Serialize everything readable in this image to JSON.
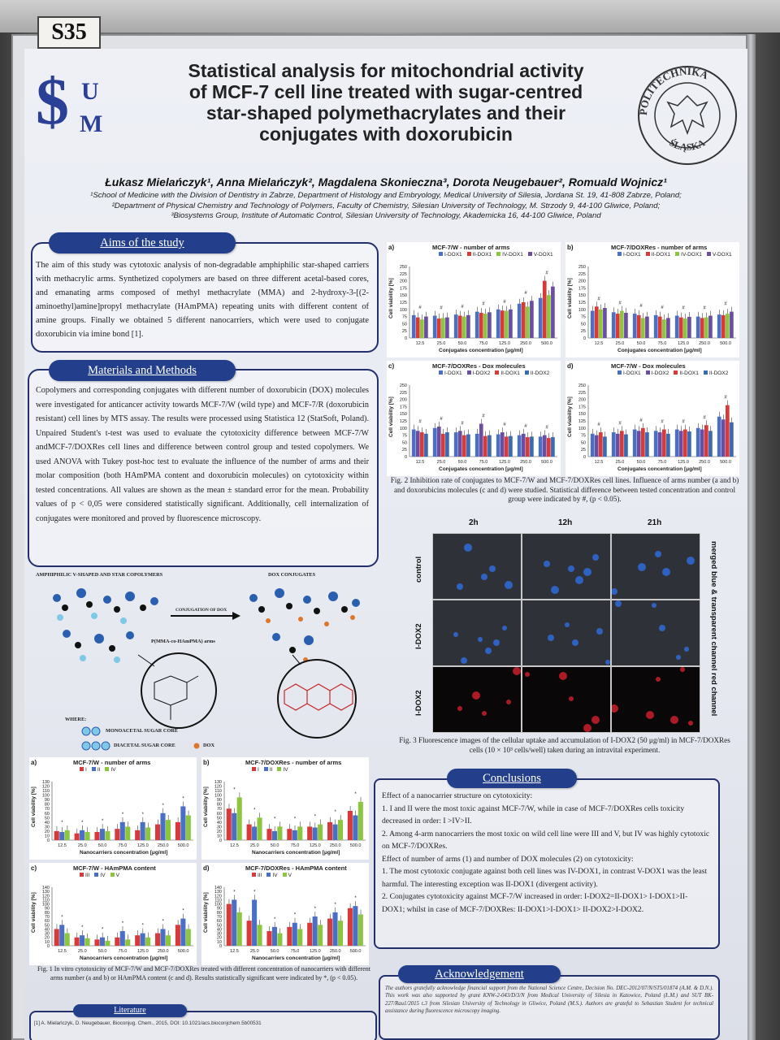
{
  "board": {
    "tag": "S35"
  },
  "logo": {
    "left": "$",
    "u": "U",
    "m": "M",
    "seal_text": "POLITECHNIKA ŚLĄSKA"
  },
  "title": {
    "lines": [
      "Statistical analysis for mitochondrial activity",
      "of MCF-7 cell line treated with sugar-centred",
      "star-shaped polymethacrylates and their",
      "conjugates with doxorubicin"
    ]
  },
  "authors": "Łukasz Mielańczyk¹, Anna Mielańczyk², Magdalena Skonieczna³, Dorota Neugebauer², Romuald Wojnicz¹",
  "affiliations": [
    "¹School of Medicine with the Division of Dentistry in Zabrze, Department of Histology and Embryology, Medical University of Silesia, Jordana St. 19, 41-808 Zabrze, Poland;",
    "²Department of Physical Chemistry and Technology of Polymers, Faculty of Chemistry, Silesian University of Technology, M. Strzody 9, 44-100 Gliwice, Poland;",
    "³Biosystems Group, Institute of Automatic Control, Silesian University of Technology, Akademicka 16, 44-100 Gliwice, Poland"
  ],
  "aims": {
    "heading": "Aims of the study",
    "text": "The aim of this study was cytotoxic analysis of non-degradable amphiphilic star-shaped carriers with methacrylic arms. Synthetized copolymers are based on three different acetal-based cores, and emanating arms composed of methyl methacrylate (MMA) and 2-hydroxy-3-[(2-aminoethyl)amine]propyl methacrylate (HAmPMA) repeating units with different content of amine groups. Finally we obtained 5 different nanocarriers, which were used to conjugate doxorubicin via imine bond [1]."
  },
  "methods": {
    "heading": "Materials and Methods",
    "text": "Copolymers and corresponding conjugates with different number of doxorubicin (DOX) molecules were investigated for anticancer activity towards MCF-7/W (wild type) and MCF-7/R (doxorubicin resistant) cell lines by MTS assay. The results were processed using Statistica 12 (StatSoft, Poland). Unpaired Student's t-test was used to evaluate the cytotoxicity difference between MCF-7/W andMCF-7/DOXRes cell lines and difference between control group and tested copolymers. We used ANOVA with Tukey post-hoc test to evaluate the influence of the number of arms and their molar composition (both HAmPMA content and doxorubicin molecules) on cytotoxicity within tested concentrations. All values are shown as the mean ± standard error for the mean. Probability values of p < 0,05 were considered statistically significant. Additionally, cell internalization of conjugates were monitored and proved by fluorescence microscopy."
  },
  "scheme": {
    "left_title": "AMPHIPHILIC V-SHAPED AND STAR COPOLYMERS",
    "right_title": "DOX CONJUGATES",
    "arrow_label": "CONJUGATION OF DOX",
    "arms_label": "P(MMA-co-HAmPMA) arms",
    "where": "WHERE:",
    "mono": "MONOACETAL SUGAR CORE",
    "di": "DIACETAL SUGAR CORE",
    "dox": "DOX"
  },
  "fig2": {
    "caption": "Fig. 2 Inhibition rate of conjugates to MCF-7/W and MCF-7/DOXRes cell lines. Influence of arms number (a and b) and doxorubicins molecules (c and d) were studied. Statistical difference between tested concentration and control group were indicated by #, (p < 0.05).",
    "y_label": "Cell viability [%]",
    "x_label": "Conjugates concentration [μg/ml]"
  },
  "fig1": {
    "caption": "Fig. 1 In vitro cytotoxicity of MCF-7/W and MCF-7/DOXRes treated with different concentration of nanocarriers with different arms number (a and b) or HAmPMA content (c and d). Results statistically significant were indicated by *, (p < 0.05).",
    "y_label": "Cell viability [%]",
    "x_label": "Nanocarriers concentration [μg/ml]"
  },
  "fig3": {
    "caption": "Fig. 3 Fluorescence images of the cellular uptake and accumulation of I-DOX2 (50 μg/ml) in MCF-7/DOXRes cells (10 × 10³ cells/well) taken during an intravital experiment.",
    "columns": [
      "2h",
      "12h",
      "21h"
    ],
    "rows": [
      "control",
      "I-DOX2",
      "I-DOX2"
    ],
    "side_top": "merged blue & transparent channel",
    "side_bottom": "red channel"
  },
  "conclusions": {
    "heading": "Conclusions",
    "intro1": "Effect of a nanocarrier structure on cytotoxicity:",
    "item1": "1.  I and II were the most toxic against MCF-7/W, while in case of MCF-7/DOXRes cells toxicity decreased in order: I >IV>II.",
    "item2": "2.  Among 4-arm nanocarriers the most toxic on wild cell line were III and V, but IV was highly cytotoxic on MCF-7/DOXRes.",
    "intro2": "Effect of number of arms (1) and number of DOX molecules (2) on cytotoxicity:",
    "item3": "1.  The most cytotoxic conjugate against both cell lines was IV-DOX1, in contrast V-DOX1 was the least harmful. The interesting exception was II-DOX1 (divergent activity).",
    "item4": "2.  Conjugates cytotoxicity against MCF-7/W increased in order: I-DOX2=II-DOX1> I-DOX1>II-DOX1; whilst in case of MCF-7/DOXRes: II-DOX1>I-DOX1> II-DOX2>I-DOX2."
  },
  "acknowledgement": {
    "heading": "Acknowledgement",
    "text": "The authors gratefully acknowledge financial support from the National Science Centre, Decision No. DEC-2012/07/N/ST5/01874 (A.M. & D.N.). This work was also supported by grant KNW-2-043/D/3/N from Medical University of Silesia in Katowice, Poland (Ł.M.) and SUT BK-227/Rau1/2015 t.3 from Silesian University of Technology in Gliwice, Poland (M.S.). Authors are grateful to Sebastian Student for technical assistance during fluorescence microscopy imaging."
  },
  "literature": {
    "heading": "Literature",
    "text": "[1] A. Mielańczyk, D. Neugebauer, Bioconjug. Chem., 2015, DOI: 10.1021/acs.bioconjchem.5b00531"
  },
  "chart_data": [
    {
      "id": "fig2a",
      "type": "bar",
      "panel": "a)",
      "title": "MCF-7/W - number of arms",
      "legend": [
        "I-DOX1",
        "II-DOX1",
        "IV-DOX1",
        "V-DOX1"
      ],
      "colors": [
        "#4a6fc4",
        "#d83a3a",
        "#8cc63f",
        "#6a4ea0"
      ],
      "categories": [
        "12.5",
        "25.0",
        "50.0",
        "75.0",
        "125.0",
        "250.0",
        "500.0"
      ],
      "ylim": [
        0,
        250
      ],
      "yticks": [
        0,
        25,
        50,
        75,
        100,
        125,
        150,
        175,
        200,
        225,
        250
      ],
      "series": [
        {
          "name": "I-DOX1",
          "values": [
            80,
            78,
            82,
            92,
            100,
            120,
            140
          ]
        },
        {
          "name": "II-DOX1",
          "values": [
            72,
            68,
            78,
            88,
            96,
            125,
            200
          ]
        },
        {
          "name": "IV-DOX1",
          "values": [
            65,
            70,
            75,
            85,
            95,
            110,
            150
          ]
        },
        {
          "name": "V-DOX1",
          "values": [
            75,
            72,
            80,
            90,
            100,
            130,
            180
          ]
        }
      ]
    },
    {
      "id": "fig2b",
      "type": "bar",
      "panel": "b)",
      "title": "MCF-7/DOXRes - number of arms",
      "legend": [
        "I-DOX1",
        "II-DOX1",
        "IV-DOX1",
        "V-DOX1"
      ],
      "colors": [
        "#4a6fc4",
        "#d83a3a",
        "#8cc63f",
        "#6a4ea0"
      ],
      "categories": [
        "12.5",
        "25.0",
        "50.0",
        "75.0",
        "125.0",
        "250.0",
        "500.0"
      ],
      "ylim": [
        0,
        250
      ],
      "yticks": [
        0,
        25,
        50,
        75,
        100,
        125,
        150,
        175,
        200,
        225,
        250
      ],
      "series": [
        {
          "name": "I-DOX1",
          "values": [
            95,
            90,
            85,
            80,
            78,
            75,
            82
          ]
        },
        {
          "name": "II-DOX1",
          "values": [
            110,
            85,
            80,
            75,
            72,
            70,
            80
          ]
        },
        {
          "name": "IV-DOX1",
          "values": [
            100,
            95,
            70,
            65,
            68,
            72,
            85
          ]
        },
        {
          "name": "V-DOX1",
          "values": [
            105,
            88,
            75,
            70,
            74,
            78,
            92
          ]
        }
      ]
    },
    {
      "id": "fig2c",
      "type": "bar",
      "panel": "c)",
      "title": "MCF-7/DOXRes - Dox molecules",
      "legend": [
        "I-DOX1",
        "I-DOX2",
        "II-DOX1",
        "II-DOX2"
      ],
      "colors": [
        "#4a6fc4",
        "#6a4ea0",
        "#d83a3a",
        "#3a6ab0"
      ],
      "categories": [
        "12.5",
        "25.0",
        "50.0",
        "75.0",
        "125.0",
        "250.0",
        "500.0"
      ],
      "ylim": [
        0,
        250
      ],
      "yticks": [
        0,
        25,
        50,
        75,
        100,
        125,
        150,
        175,
        200,
        225,
        250
      ],
      "series": [
        {
          "name": "I-DOX1",
          "values": [
            95,
            100,
            85,
            80,
            78,
            75,
            70
          ]
        },
        {
          "name": "I-DOX2",
          "values": [
            90,
            105,
            90,
            115,
            85,
            80,
            75
          ]
        },
        {
          "name": "II-DOX1",
          "values": [
            85,
            80,
            75,
            72,
            70,
            68,
            65
          ]
        },
        {
          "name": "II-DOX2",
          "values": [
            80,
            85,
            78,
            75,
            72,
            70,
            68
          ]
        }
      ]
    },
    {
      "id": "fig2d",
      "type": "bar",
      "panel": "d)",
      "title": "MCF-7/W - Dox molecules",
      "legend": [
        "I-DOX1",
        "I-DOX2",
        "II-DOX1",
        "II-DOX2"
      ],
      "colors": [
        "#4a6fc4",
        "#6a4ea0",
        "#d83a3a",
        "#3a6ab0"
      ],
      "categories": [
        "12.5",
        "25.0",
        "50.0",
        "75.0",
        "125.0",
        "250.0",
        "500.0"
      ],
      "ylim": [
        0,
        250
      ],
      "yticks": [
        0,
        25,
        50,
        75,
        100,
        125,
        150,
        175,
        200,
        225,
        250
      ],
      "series": [
        {
          "name": "I-DOX1",
          "values": [
            80,
            85,
            95,
            90,
            95,
            100,
            140
          ]
        },
        {
          "name": "I-DOX2",
          "values": [
            75,
            80,
            90,
            85,
            90,
            95,
            130
          ]
        },
        {
          "name": "II-DOX1",
          "values": [
            85,
            90,
            100,
            95,
            95,
            110,
            180
          ]
        },
        {
          "name": "II-DOX2",
          "values": [
            70,
            78,
            85,
            80,
            88,
            90,
            120
          ]
        }
      ]
    },
    {
      "id": "fig1a",
      "type": "bar",
      "panel": "a)",
      "title": "MCF-7/W - number of arms",
      "legend": [
        "I",
        "II",
        "IV"
      ],
      "colors": [
        "#d83a3a",
        "#4a6fc4",
        "#8cc63f"
      ],
      "categories": [
        "12.5",
        "25.0",
        "50.0",
        "75.0",
        "125.0",
        "250.0",
        "500.0"
      ],
      "ylim": [
        0,
        130
      ],
      "yticks": [
        0,
        10,
        20,
        30,
        40,
        50,
        60,
        70,
        80,
        90,
        100,
        110,
        120,
        130
      ],
      "series": [
        {
          "name": "I",
          "values": [
            20,
            15,
            18,
            25,
            22,
            35,
            40
          ]
        },
        {
          "name": "II",
          "values": [
            18,
            22,
            25,
            40,
            40,
            60,
            75
          ]
        },
        {
          "name": "IV",
          "values": [
            22,
            18,
            20,
            30,
            28,
            45,
            55
          ]
        }
      ]
    },
    {
      "id": "fig1b",
      "type": "bar",
      "panel": "b)",
      "title": "MCF-7/DOXRes - number of arms",
      "legend": [
        "I",
        "II",
        "IV"
      ],
      "colors": [
        "#d83a3a",
        "#4a6fc4",
        "#8cc63f"
      ],
      "categories": [
        "12.5",
        "25.0",
        "50.0",
        "75.0",
        "125.0",
        "250.0",
        "500.0"
      ],
      "ylim": [
        0,
        130
      ],
      "yticks": [
        0,
        10,
        20,
        30,
        40,
        50,
        60,
        70,
        80,
        90,
        100,
        110,
        120,
        130
      ],
      "series": [
        {
          "name": "I",
          "values": [
            70,
            35,
            25,
            25,
            30,
            40,
            65
          ]
        },
        {
          "name": "II",
          "values": [
            60,
            30,
            20,
            22,
            28,
            35,
            55
          ]
        },
        {
          "name": "IV",
          "values": [
            95,
            50,
            30,
            30,
            35,
            45,
            85
          ]
        }
      ]
    },
    {
      "id": "fig1c",
      "type": "bar",
      "panel": "c)",
      "title": "MCF-7/W - HAmPMA content",
      "legend": [
        "III",
        "IV",
        "V"
      ],
      "colors": [
        "#d83a3a",
        "#4a6fc4",
        "#8cc63f"
      ],
      "categories": [
        "12.5",
        "25.0",
        "50.0",
        "75.0",
        "125.0",
        "250.0",
        "500.0"
      ],
      "ylim": [
        0,
        140
      ],
      "yticks": [
        0,
        10,
        20,
        30,
        40,
        50,
        60,
        70,
        80,
        90,
        100,
        110,
        120,
        130,
        140
      ],
      "series": [
        {
          "name": "III",
          "values": [
            40,
            20,
            15,
            20,
            25,
            30,
            50
          ]
        },
        {
          "name": "IV",
          "values": [
            50,
            25,
            20,
            35,
            30,
            40,
            65
          ]
        },
        {
          "name": "V",
          "values": [
            30,
            18,
            12,
            15,
            20,
            25,
            40
          ]
        }
      ]
    },
    {
      "id": "fig1d",
      "type": "bar",
      "panel": "d)",
      "title": "MCF-7/DOXRes - HAmPMA content",
      "legend": [
        "III",
        "IV",
        "V"
      ],
      "colors": [
        "#d83a3a",
        "#4a6fc4",
        "#8cc63f"
      ],
      "categories": [
        "12.5",
        "25.0",
        "50.0",
        "75.0",
        "125.0",
        "250.0",
        "500.0"
      ],
      "ylim": [
        0,
        140
      ],
      "yticks": [
        0,
        10,
        20,
        30,
        40,
        50,
        60,
        70,
        80,
        90,
        100,
        110,
        120,
        130,
        140
      ],
      "series": [
        {
          "name": "III",
          "values": [
            100,
            60,
            35,
            45,
            55,
            65,
            90
          ]
        },
        {
          "name": "IV",
          "values": [
            110,
            110,
            45,
            55,
            70,
            80,
            95
          ]
        },
        {
          "name": "V",
          "values": [
            80,
            50,
            30,
            40,
            50,
            60,
            75
          ]
        }
      ]
    }
  ]
}
